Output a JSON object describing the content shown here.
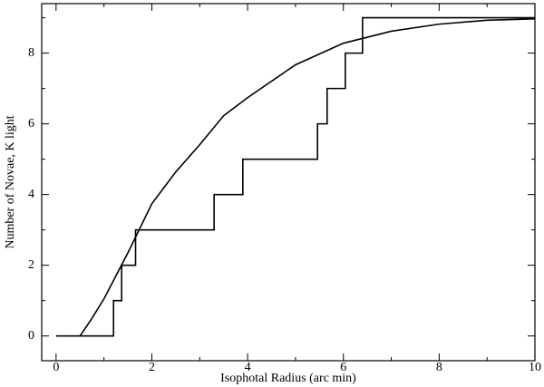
{
  "chart_data": {
    "type": "line",
    "xlabel": "Isophotal Radius (arc min)",
    "ylabel": "Number of Novae, K light",
    "xlim": [
      -0.3,
      10
    ],
    "ylim": [
      -0.7,
      9.4
    ],
    "xticks": [
      0,
      2,
      4,
      6,
      8,
      10
    ],
    "yticks": [
      0,
      2,
      4,
      6,
      8
    ],
    "xminorticks": [
      1,
      3,
      5,
      7,
      9
    ],
    "yminorticks": [
      1,
      3,
      5,
      7,
      9
    ],
    "series": [
      {
        "step": "post",
        "color": "#000000",
        "x": [
          0,
          1.2,
          1.37,
          1.66,
          3.3,
          3.9,
          5.46,
          5.66,
          6.04,
          6.4,
          10
        ],
        "values": [
          0,
          1,
          2,
          3,
          4,
          5,
          6,
          7,
          8,
          9,
          9
        ]
      },
      {
        "color": "#000000",
        "x": [
          0.5,
          0.75,
          1,
          1.5,
          2,
          2.5,
          3,
          3.5,
          4,
          5,
          6,
          7,
          8,
          9,
          10
        ],
        "values": [
          0,
          0.5,
          1.05,
          2.35,
          3.74,
          4.64,
          5.41,
          6.23,
          6.74,
          7.67,
          8.28,
          8.62,
          8.82,
          8.93,
          8.97
        ]
      }
    ]
  }
}
